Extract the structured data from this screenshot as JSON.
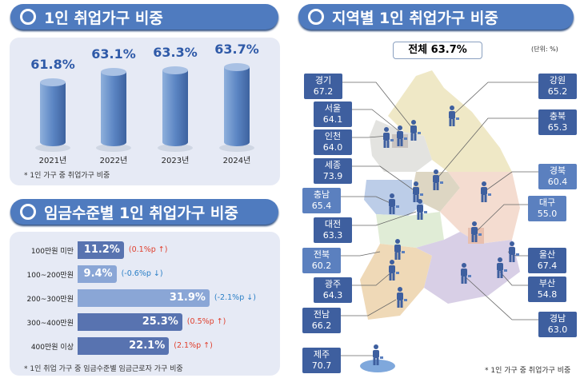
{
  "left_top": {
    "title": "1인 취업가구 비중",
    "note": "* 1인 가구 중 취업가구 비중"
  },
  "left_bottom": {
    "title": "임금수준별 1인 취업가구 비중",
    "note": "* 1인 취업 가구 중 임금수준별 임금근로자 가구 비중"
  },
  "right": {
    "title": "지역별 1인 취업가구 비중",
    "total": "전체 63.7%",
    "unit": "(단위: %)",
    "note": "* 1인 가구 중 취업가구 비중"
  },
  "chart_data": [
    {
      "type": "bar",
      "title": "1인 취업가구 비중",
      "categories": [
        "2021년",
        "2022년",
        "2023년",
        "2024년"
      ],
      "values": [
        61.8,
        63.1,
        63.3,
        63.7
      ],
      "labels": [
        "61.8%",
        "63.1%",
        "63.3%",
        "63.7%"
      ]
    },
    {
      "type": "bar",
      "orientation": "horizontal",
      "title": "임금수준별 1인 취업가구 비중",
      "categories": [
        "100만원 미만",
        "100~200만원",
        "200~300만원",
        "300~400만원",
        "400만원 이상"
      ],
      "values": [
        11.2,
        9.4,
        31.9,
        25.3,
        22.1
      ],
      "labels": [
        "11.2%",
        "9.4%",
        "31.9%",
        "25.3%",
        "22.1%"
      ],
      "changes": [
        "(0.1%p ↑)",
        "(-0.6%p ↓)",
        "(-2.1%p ↓)",
        "(0.5%p ↑)",
        "(2.1%p ↑)"
      ],
      "change_dir": [
        "up",
        "down",
        "down",
        "up",
        "up"
      ]
    },
    {
      "type": "table",
      "title": "지역별 1인 취업가구 비중",
      "regions": [
        {
          "name": "경기",
          "value": "67.2"
        },
        {
          "name": "서울",
          "value": "64.1"
        },
        {
          "name": "인천",
          "value": "64.0"
        },
        {
          "name": "세종",
          "value": "73.9"
        },
        {
          "name": "충남",
          "value": "65.4"
        },
        {
          "name": "대전",
          "value": "63.3"
        },
        {
          "name": "전북",
          "value": "60.2"
        },
        {
          "name": "광주",
          "value": "64.3"
        },
        {
          "name": "전남",
          "value": "66.2"
        },
        {
          "name": "제주",
          "value": "70.7"
        },
        {
          "name": "강원",
          "value": "65.2"
        },
        {
          "name": "충북",
          "value": "65.3"
        },
        {
          "name": "경북",
          "value": "60.4"
        },
        {
          "name": "대구",
          "value": "55.0"
        },
        {
          "name": "울산",
          "value": "67.4"
        },
        {
          "name": "부산",
          "value": "54.8"
        },
        {
          "name": "경남",
          "value": "63.0"
        }
      ]
    }
  ],
  "colors": {
    "banner": "#4f7bbf",
    "bar_dark": "#5873b0",
    "bar_light": "#8aa6d6",
    "up": "#e0402e",
    "down": "#2a7fc6"
  }
}
